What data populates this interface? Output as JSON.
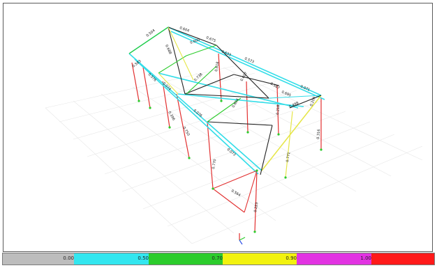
{
  "legend": {
    "ticks": [
      "0.00",
      "0.50",
      "0.70",
      "0.90",
      "1.00"
    ],
    "colors": [
      "#bdbdbd",
      "#33e6ef",
      "#2ccc2c",
      "#f2f20f",
      "#e233e2",
      "#ff1a1a"
    ]
  },
  "member_labels": {
    "l_604": "0.604",
    "l_504": "0.504",
    "l_675": "0.675",
    "l_600": "0.600",
    "l_633": "0.633",
    "l_688": "0.688",
    "l_573": "0.573",
    "l_583": "0.583",
    "l_576": "0.576",
    "l_074": "0.074",
    "l_076": "0.076",
    "l_738": "0.738",
    "l_618": "0.618",
    "l_607": "0.607",
    "l_604b": "0.604",
    "l_587": "0.587",
    "l_071": "0.071",
    "l_695": "0.695",
    "l_206": "0.206",
    "l_498": "0.498",
    "l_218": "0.218",
    "l_316": "0.316",
    "l_771": "0.771",
    "l_073": "0.073",
    "l_770": "0.770",
    "l_564": "0.564",
    "l_223": "0.223",
    "l_396": "0.396",
    "l_750": "0.750"
  }
}
